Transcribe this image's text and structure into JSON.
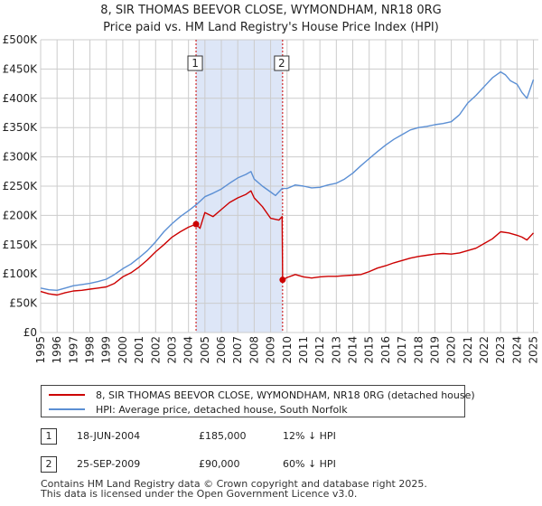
{
  "title_line1": "8, SIR THOMAS BEEVOR CLOSE, WYMONDHAM, NR18 0RG",
  "title_line2": "Price paid vs. HM Land Registry's House Price Index (HPI)",
  "colors": {
    "property": "#cc0000",
    "hpi": "#5b8fd4",
    "shade": "#dde6f7",
    "grid": "#cccccc"
  },
  "chart_data": {
    "type": "line",
    "title": "8, SIR THOMAS BEEVOR CLOSE, WYMONDHAM, NR18 0RG — Price paid vs. HM Land Registry's House Price Index (HPI)",
    "xlim": [
      1995.0,
      2025.3
    ],
    "ylim": [
      0,
      500000
    ],
    "x_ticks": [
      1995,
      1996,
      1997,
      1998,
      1999,
      2000,
      2001,
      2002,
      2003,
      2004,
      2005,
      2006,
      2007,
      2008,
      2009,
      2010,
      2011,
      2012,
      2013,
      2014,
      2015,
      2016,
      2017,
      2018,
      2019,
      2020,
      2021,
      2022,
      2023,
      2024,
      2025
    ],
    "y_ticks": [
      {
        "value": 0,
        "label": "£0"
      },
      {
        "value": 50000,
        "label": "£50K"
      },
      {
        "value": 100000,
        "label": "£100K"
      },
      {
        "value": 150000,
        "label": "£150K"
      },
      {
        "value": 200000,
        "label": "£200K"
      },
      {
        "value": 250000,
        "label": "£250K"
      },
      {
        "value": 300000,
        "label": "£300K"
      },
      {
        "value": 350000,
        "label": "£350K"
      },
      {
        "value": 400000,
        "label": "£400K"
      },
      {
        "value": 450000,
        "label": "£450K"
      },
      {
        "value": 500000,
        "label": "£500K"
      }
    ],
    "shaded_range": [
      2004.46,
      2009.73
    ],
    "series": [
      {
        "name": "8, SIR THOMAS BEEVOR CLOSE, WYMONDHAM, NR18 0RG (detached house)",
        "x": [
          1995.0,
          1995.5,
          1996.0,
          1996.5,
          1997.0,
          1997.5,
          1998.0,
          1998.5,
          1999.0,
          1999.5,
          2000.0,
          2000.5,
          2001.0,
          2001.5,
          2002.0,
          2002.5,
          2003.0,
          2003.5,
          2004.0,
          2004.46,
          2004.7,
          2005.0,
          2005.5,
          2006.0,
          2006.5,
          2007.0,
          2007.5,
          2007.8,
          2008.0,
          2008.5,
          2009.0,
          2009.5,
          2009.7,
          2009.73,
          2010.0,
          2010.5,
          2011.0,
          2011.5,
          2012.0,
          2012.5,
          2013.0,
          2013.5,
          2014.0,
          2014.5,
          2015.0,
          2015.5,
          2016.0,
          2016.5,
          2017.0,
          2017.5,
          2018.0,
          2018.5,
          2019.0,
          2019.5,
          2020.0,
          2020.5,
          2021.0,
          2021.5,
          2022.0,
          2022.5,
          2023.0,
          2023.5,
          2024.0,
          2024.3,
          2024.6,
          2025.0
        ],
        "y": [
          70000,
          66000,
          64000,
          68000,
          71000,
          72000,
          74000,
          76000,
          78000,
          84000,
          95000,
          102000,
          112000,
          124000,
          138000,
          150000,
          163000,
          172000,
          180000,
          185000,
          178000,
          205000,
          198000,
          210000,
          222000,
          230000,
          236000,
          242000,
          230000,
          215000,
          195000,
          192000,
          198000,
          90000,
          94000,
          99000,
          95000,
          93000,
          95000,
          96000,
          96000,
          97000,
          98000,
          99000,
          104000,
          110000,
          114000,
          119000,
          123000,
          127000,
          130000,
          132000,
          134000,
          135000,
          134000,
          136000,
          140000,
          144000,
          152000,
          160000,
          172000,
          170000,
          166000,
          163000,
          158000,
          170000
        ]
      },
      {
        "name": "HPI: Average price, detached house, South Norfolk",
        "x": [
          1995.0,
          1995.5,
          1996.0,
          1996.5,
          1997.0,
          1997.5,
          1998.0,
          1998.5,
          1999.0,
          1999.5,
          2000.0,
          2000.5,
          2001.0,
          2001.5,
          2002.0,
          2002.5,
          2003.0,
          2003.5,
          2004.0,
          2004.5,
          2005.0,
          2005.5,
          2006.0,
          2006.5,
          2007.0,
          2007.5,
          2007.8,
          2008.0,
          2008.5,
          2009.0,
          2009.3,
          2009.7,
          2010.0,
          2010.5,
          2011.0,
          2011.5,
          2012.0,
          2012.5,
          2013.0,
          2013.5,
          2014.0,
          2014.5,
          2015.0,
          2015.5,
          2016.0,
          2016.5,
          2017.0,
          2017.5,
          2018.0,
          2018.5,
          2019.0,
          2019.5,
          2020.0,
          2020.5,
          2021.0,
          2021.5,
          2022.0,
          2022.5,
          2023.0,
          2023.3,
          2023.6,
          2024.0,
          2024.3,
          2024.6,
          2025.0
        ],
        "y": [
          76000,
          73000,
          72000,
          76000,
          80000,
          82000,
          84000,
          87000,
          91000,
          99000,
          109000,
          117000,
          128000,
          140000,
          155000,
          172000,
          186000,
          198000,
          208000,
          219000,
          232000,
          238000,
          245000,
          255000,
          264000,
          270000,
          275000,
          262000,
          250000,
          240000,
          234000,
          246000,
          246000,
          252000,
          250000,
          247000,
          248000,
          252000,
          255000,
          262000,
          272000,
          285000,
          297000,
          309000,
          320000,
          330000,
          338000,
          346000,
          350000,
          352000,
          355000,
          357000,
          360000,
          372000,
          392000,
          405000,
          420000,
          435000,
          445000,
          440000,
          430000,
          424000,
          410000,
          400000,
          432000
        ]
      }
    ],
    "annotations": [
      {
        "label": "1",
        "x": 2004.46,
        "y": 185000
      },
      {
        "label": "2",
        "x": 2009.73,
        "y": 90000
      }
    ]
  },
  "legend": {
    "property_label": "8, SIR THOMAS BEEVOR CLOSE, WYMONDHAM, NR18 0RG (detached house)",
    "hpi_label": "HPI: Average price, detached house, South Norfolk"
  },
  "transactions": [
    {
      "num": "1",
      "date": "18-JUN-2004",
      "price": "£185,000",
      "hpi": "12% ↓ HPI"
    },
    {
      "num": "2",
      "date": "25-SEP-2009",
      "price": "£90,000",
      "hpi": "60% ↓ HPI"
    }
  ],
  "footer": {
    "line1": "Contains HM Land Registry data © Crown copyright and database right 2025.",
    "line2": "This data is licensed under the Open Government Licence v3.0."
  }
}
